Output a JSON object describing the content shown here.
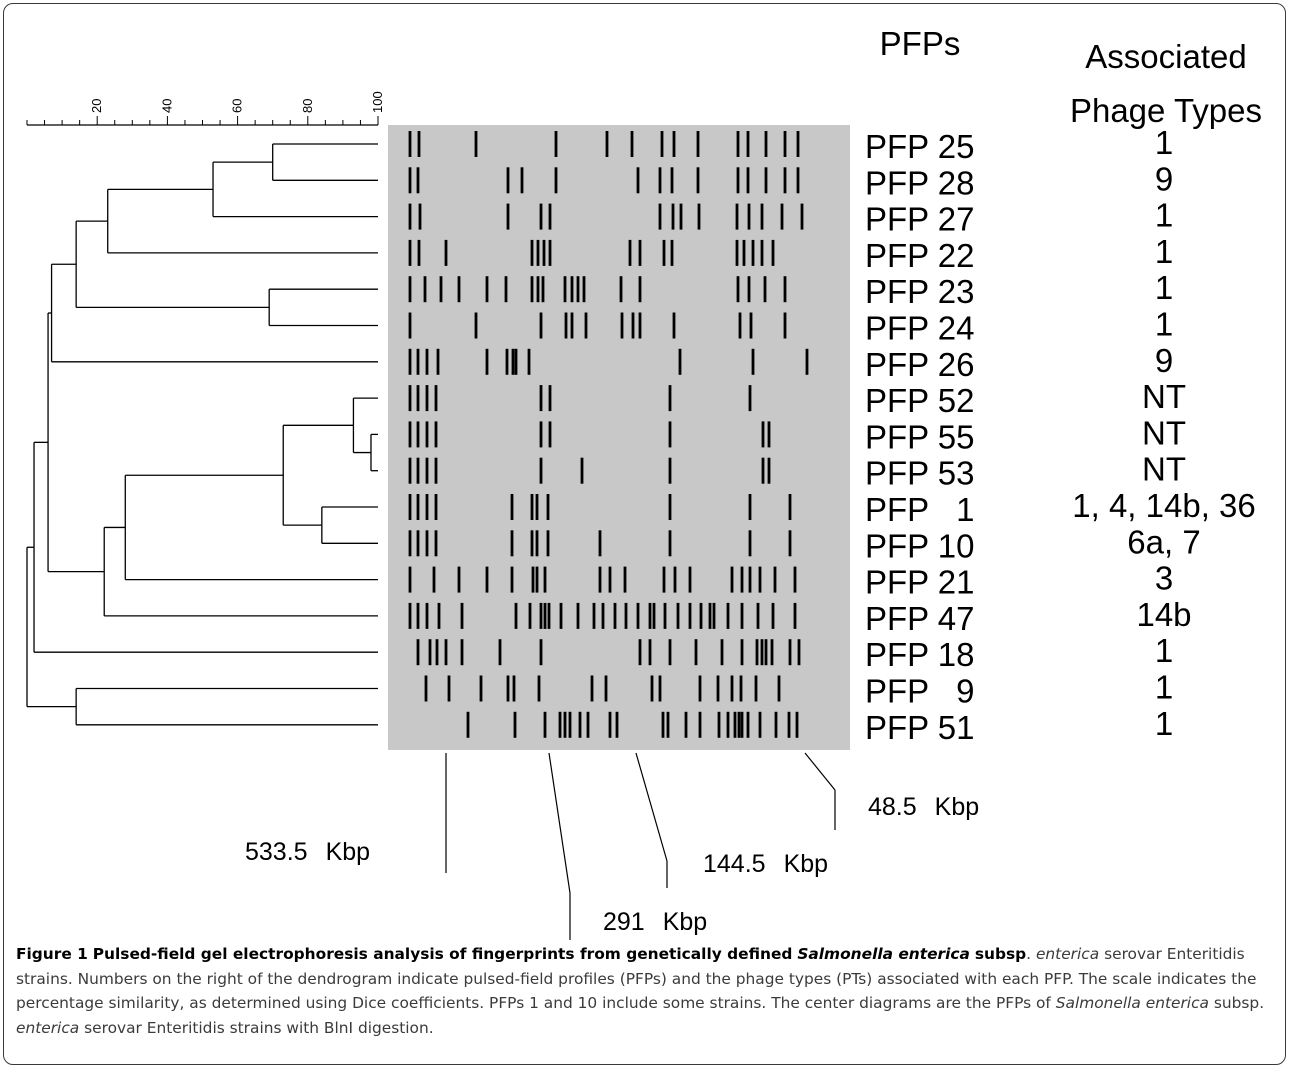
{
  "headers": {
    "pfps": "PFPs",
    "phage_line1": "Associated",
    "phage_line2": "Phage Types"
  },
  "scale": {
    "ticks": [
      "20",
      "40",
      "60",
      "80",
      "100"
    ],
    "max": 100
  },
  "profiles": [
    {
      "label": "PFP 25",
      "phage": "1"
    },
    {
      "label": "PFP 28",
      "phage": "9"
    },
    {
      "label": "PFP 27",
      "phage": "1"
    },
    {
      "label": "PFP 22",
      "phage": "1"
    },
    {
      "label": "PFP 23",
      "phage": "1"
    },
    {
      "label": "PFP 24",
      "phage": "1"
    },
    {
      "label": "PFP 26",
      "phage": "9"
    },
    {
      "label": "PFP 52",
      "phage": "NT"
    },
    {
      "label": "PFP 55",
      "phage": "NT"
    },
    {
      "label": "PFP 53",
      "phage": "NT"
    },
    {
      "label": "PFP   1",
      "phage": "1, 4, 14b, 36"
    },
    {
      "label": "PFP 10",
      "phage": "6a, 7"
    },
    {
      "label": "PFP 21",
      "phage": "3"
    },
    {
      "label": "PFP 47",
      "phage": "14b"
    },
    {
      "label": "PFP 18",
      "phage": "1"
    },
    {
      "label": "PFP   9",
      "phage": "1"
    },
    {
      "label": "PFP 51",
      "phage": "1"
    }
  ],
  "dendrogram": [
    {
      "similarity": 70,
      "a": 0,
      "b": 1
    },
    {
      "similarity": 53,
      "a": "n0",
      "b": 2
    },
    {
      "similarity": 23,
      "a": "n1",
      "b": 3
    },
    {
      "similarity": 69,
      "a": 4,
      "b": 5
    },
    {
      "similarity": 14,
      "a": "n2",
      "b": "n3"
    },
    {
      "similarity": 7,
      "a": "n4",
      "b": 6
    },
    {
      "similarity": 98,
      "a": 8,
      "b": 9
    },
    {
      "similarity": 93,
      "a": 7,
      "b": "n6"
    },
    {
      "similarity": 84,
      "a": 10,
      "b": 11
    },
    {
      "similarity": 73,
      "a": "n7",
      "b": "n8"
    },
    {
      "similarity": 28,
      "a": "n9",
      "b": 12
    },
    {
      "similarity": 22,
      "a": "n10",
      "b": 13
    },
    {
      "similarity": 6,
      "a": "n5",
      "b": "n11"
    },
    {
      "similarity": 2,
      "a": "n12",
      "b": 14
    },
    {
      "similarity": 14,
      "a": 15,
      "b": 16
    },
    {
      "similarity": 0,
      "a": "n13",
      "b": "n14"
    }
  ],
  "markers": [
    {
      "size": "533.5",
      "unit": "Kbp"
    },
    {
      "size": "291",
      "unit": "Kbp"
    },
    {
      "size": "144.5",
      "unit": "Kbp"
    },
    {
      "size": "48.5",
      "unit": "Kbp"
    }
  ],
  "caption": {
    "label": "Figure 1",
    "bold_1": "Pulsed-field gel electrophoresis analysis of fingerprints from genetically defined",
    "bold_italic_1": "Salmonella enterica",
    "bold_2": "subsp",
    "text_1": ". ",
    "italic_1": "enterica",
    "text_2": " serovar Enteritidis strains. Numbers on the right of the dendrogram indicate pulsed-field profiles (PFPs) and the phage types (PTs) associated with each PFP. The scale indicates the percentage similarity, as determined using Dice coefficients. PFPs 1 and 10 include some strains. The center diagrams are the PFPs of ",
    "italic_2": "Salmonella enterica",
    "text_3": " subsp. ",
    "italic_3": "enterica",
    "text_4": " serovar Enteritidis strains with BlnI digestion."
  }
}
